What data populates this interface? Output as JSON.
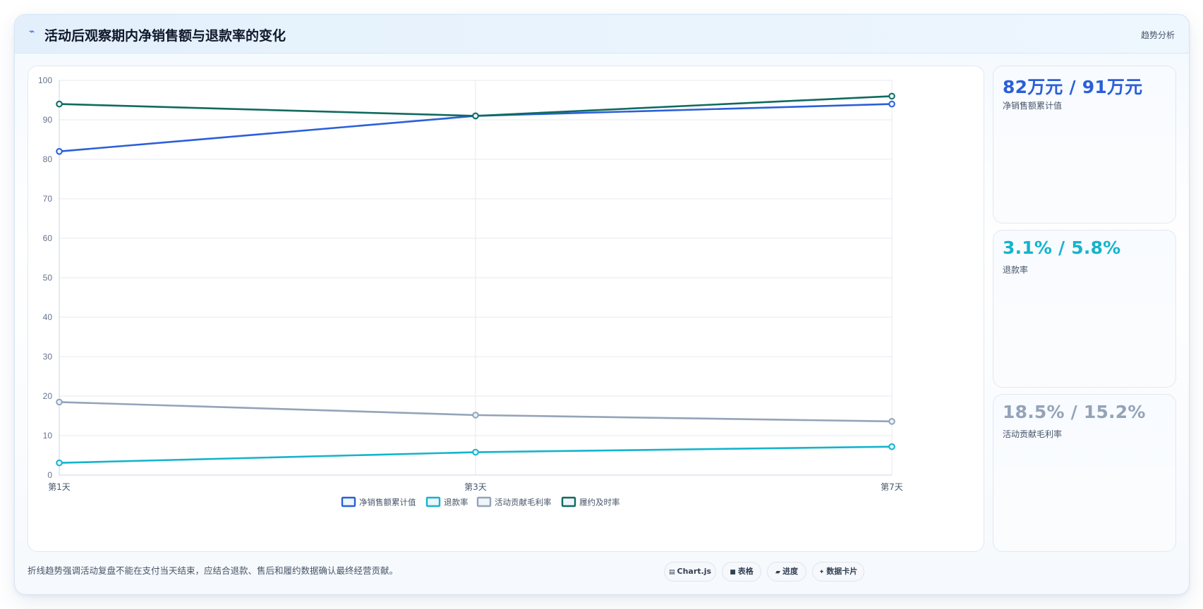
{
  "header": {
    "icon": "trend-icon",
    "title": "活动后观察期内净销售额与退款率的变化",
    "tag": "趋势分析"
  },
  "chart_data": {
    "type": "line",
    "categories": [
      "第1天",
      "第3天",
      "第7天"
    ],
    "ylim": [
      0,
      100
    ],
    "yticks": [
      0,
      10,
      20,
      30,
      40,
      50,
      60,
      70,
      80,
      90,
      100
    ],
    "grid": true,
    "legend_position": "bottom",
    "series": [
      {
        "name": "净销售额累计值",
        "values": [
          82,
          91,
          94
        ],
        "color": "#2b5fd9"
      },
      {
        "name": "退款率",
        "values": [
          3.1,
          5.8,
          7.2
        ],
        "color": "#14b4cc"
      },
      {
        "name": "活动贡献毛利率",
        "values": [
          18.5,
          15.2,
          13.6
        ],
        "color": "#94a3b8"
      },
      {
        "name": "履约及时率",
        "values": [
          94,
          91,
          96
        ],
        "color": "#0f6b5e"
      }
    ]
  },
  "stats": [
    {
      "value": "82万元 / 91万元",
      "label": "净销售额累计值",
      "color": "#2b5fd9"
    },
    {
      "value": "3.1% / 5.8%",
      "label": "退款率",
      "color": "#14b4cc"
    },
    {
      "value": "18.5% / 15.2%",
      "label": "活动贡献毛利率",
      "color": "#94a3b8"
    }
  ],
  "footer": {
    "note": "折线趋势强调活动复盘不能在支付当天结束，应结合退款、售后和履约数据确认最终经营贡献。",
    "chips": [
      {
        "icon": "chart-icon",
        "glyph": "▤",
        "label": "Chart.js"
      },
      {
        "icon": "table-icon",
        "glyph": "■",
        "label": "表格"
      },
      {
        "icon": "progress-icon",
        "glyph": "▰",
        "label": "进度"
      },
      {
        "icon": "card-icon",
        "glyph": "✦",
        "label": "数据卡片"
      }
    ]
  }
}
